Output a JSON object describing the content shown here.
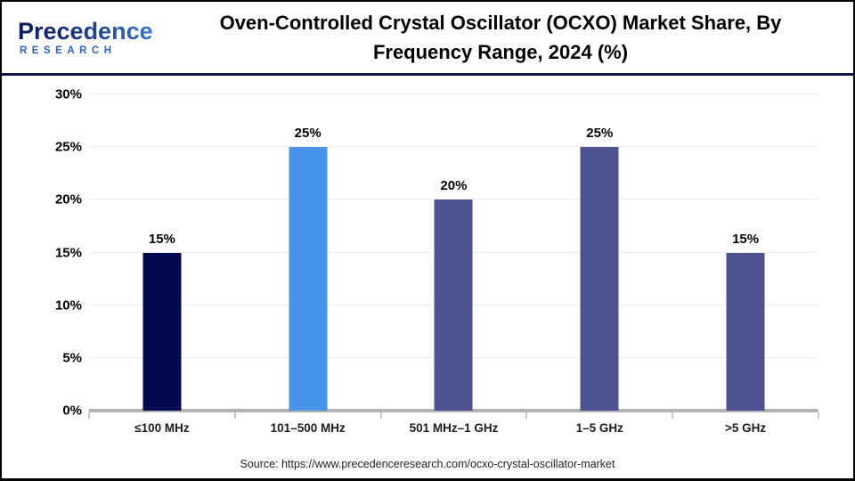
{
  "header": {
    "logo": {
      "line1": "Precedence",
      "line2": "RESEARCH"
    },
    "title": "Oven-Controlled Crystal Oscillator (OCXO) Market Share, By Frequency Range, 2024 (%)"
  },
  "chart_data": {
    "type": "bar",
    "title": "Oven-Controlled Crystal Oscillator (OCXO) Market Share, By Frequency Range, 2024 (%)",
    "categories": [
      "≤100 MHz",
      "101–500 MHz",
      "501 MHz–1 GHz",
      "1–5 GHz",
      ">5 GHz"
    ],
    "values": [
      15,
      25,
      20,
      25,
      15
    ],
    "value_labels": [
      "15%",
      "25%",
      "20%",
      "25%",
      "15%"
    ],
    "bar_colors": [
      "#020b50",
      "#4a93ea",
      "#4d5391",
      "#4d5391",
      "#4d5391"
    ],
    "xlabel": "",
    "ylabel": "",
    "ylim": [
      0,
      30
    ],
    "yticks": [
      0,
      5,
      10,
      15,
      20,
      25,
      30
    ],
    "ytick_labels": [
      "0%",
      "5%",
      "10%",
      "15%",
      "20%",
      "25%",
      "30%"
    ],
    "grid": true,
    "legend": "none"
  },
  "footer": {
    "source": "Source: https://www.precedenceresearch.com/ocxo-crystal-oscillator-market"
  },
  "colors": {
    "divider_navy": "#101a4a",
    "baseline_gray": "#b3b3b3",
    "gridline_gray": "#ededed",
    "bar_dark_navy": "#020b50",
    "bar_light_blue": "#4a93ea",
    "bar_slate": "#4d5391"
  }
}
